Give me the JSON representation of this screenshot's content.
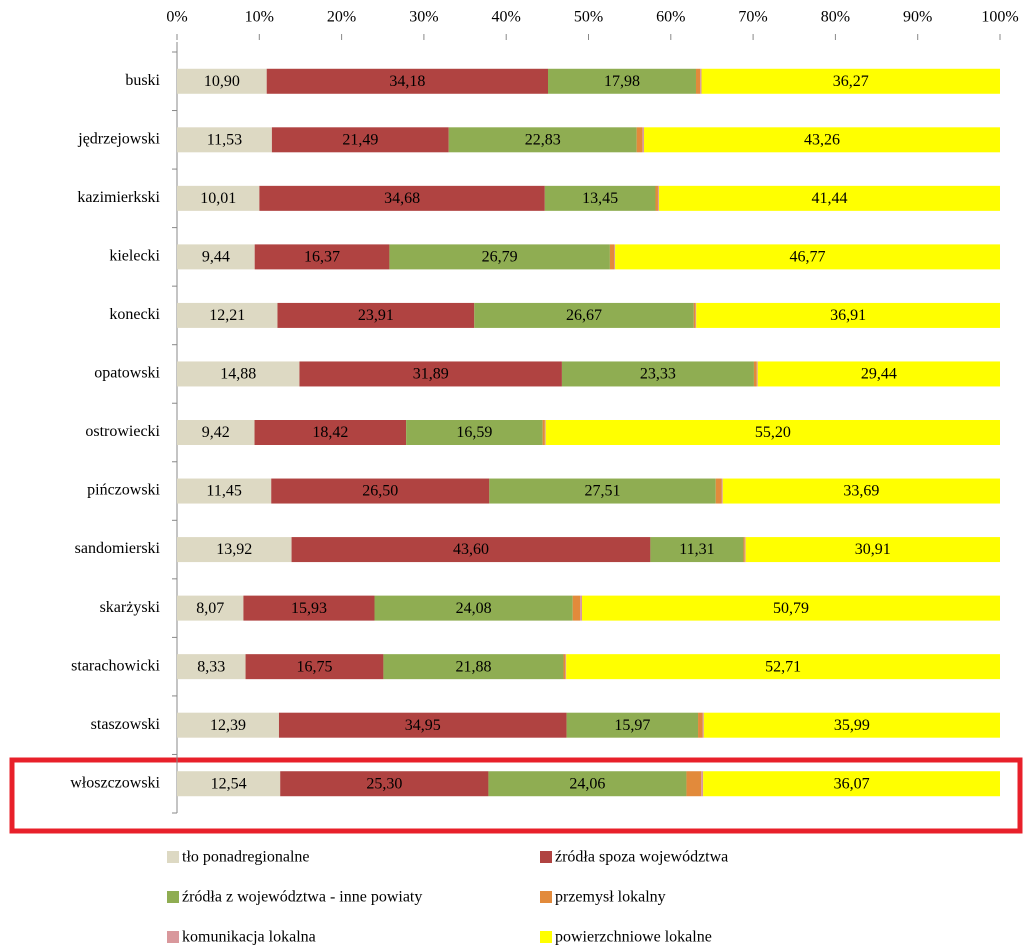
{
  "chart_data": {
    "type": "stacked_barh",
    "categories": [
      "buski",
      "jędrzejowski",
      "kazimierkski",
      "kielecki",
      "konecki",
      "opatowski",
      "ostrowiecki",
      "pińczowski",
      "sandomierski",
      "skarżyski",
      "starachowicki",
      "staszowski",
      "włoszczowski"
    ],
    "xlim": [
      0,
      100
    ],
    "xticks": [
      {
        "value": 0,
        "label": "0%"
      },
      {
        "value": 10,
        "label": "10%"
      },
      {
        "value": 20,
        "label": "20%"
      },
      {
        "value": 30,
        "label": "30%"
      },
      {
        "value": 40,
        "label": "40%"
      },
      {
        "value": 50,
        "label": "50%"
      },
      {
        "value": 60,
        "label": "60%"
      },
      {
        "value": 70,
        "label": "70%"
      },
      {
        "value": 80,
        "label": "80%"
      },
      {
        "value": 90,
        "label": "90%"
      },
      {
        "value": 100,
        "label": "100%"
      }
    ],
    "series": [
      {
        "name": "tło ponadregionalne",
        "color": "#ddd9c3",
        "values": [
          10.9,
          11.53,
          10.01,
          9.44,
          12.21,
          14.88,
          9.42,
          11.45,
          13.92,
          8.07,
          8.33,
          12.39,
          12.54
        ],
        "value_labels": [
          "10,90",
          "11,53",
          "10,01",
          "9,44",
          "12,21",
          "14,88",
          "9,42",
          "11,45",
          "13,92",
          "8,07",
          "8,33",
          "12,39",
          "12,54"
        ]
      },
      {
        "name": "źródła spoza województwa",
        "color": "#b04341",
        "values": [
          34.18,
          21.49,
          34.68,
          16.37,
          23.91,
          31.89,
          18.42,
          26.5,
          43.6,
          15.93,
          16.75,
          34.95,
          25.3
        ],
        "value_labels": [
          "34,18",
          "21,49",
          "34,68",
          "16,37",
          "23,91",
          "31,89",
          "18,42",
          "26,50",
          "43,60",
          "15,93",
          "16,75",
          "34,95",
          "25,30"
        ]
      },
      {
        "name": "źródła z województwa - inne powiaty",
        "color": "#8fad52",
        "values": [
          17.98,
          22.83,
          13.45,
          26.79,
          26.67,
          23.33,
          16.59,
          27.51,
          11.31,
          24.08,
          21.88,
          15.97,
          24.06
        ],
        "value_labels": [
          "17,98",
          "22,83",
          "13,45",
          "26,79",
          "26,67",
          "23,33",
          "16,59",
          "27,51",
          "11,31",
          "24,08",
          "21,88",
          "15,97",
          "24,06"
        ]
      },
      {
        "name": "przemysł lokalny",
        "color": "#e28a3b",
        "values": [
          0.5,
          0.7,
          0.3,
          0.5,
          0.2,
          0.35,
          0.27,
          0.7,
          0.16,
          0.9,
          0.23,
          0.55,
          1.8
        ]
      },
      {
        "name": "komunikacja lokalna",
        "color": "#d9989c",
        "values": [
          0.17,
          0.19,
          0.12,
          0.13,
          0.1,
          0.11,
          0.1,
          0.15,
          0.1,
          0.23,
          0.1,
          0.15,
          0.23
        ]
      },
      {
        "name": "powierzchniowe lokalne",
        "color": "#ffff00",
        "values": [
          36.27,
          43.26,
          41.44,
          46.77,
          36.91,
          29.44,
          55.2,
          33.69,
          30.91,
          50.79,
          52.71,
          35.99,
          36.07
        ],
        "value_labels": [
          "36,27",
          "43,26",
          "41,44",
          "46,77",
          "36,91",
          "29,44",
          "55,20",
          "33,69",
          "30,91",
          "50,79",
          "52,71",
          "35,99",
          "36,07"
        ]
      }
    ]
  }
}
